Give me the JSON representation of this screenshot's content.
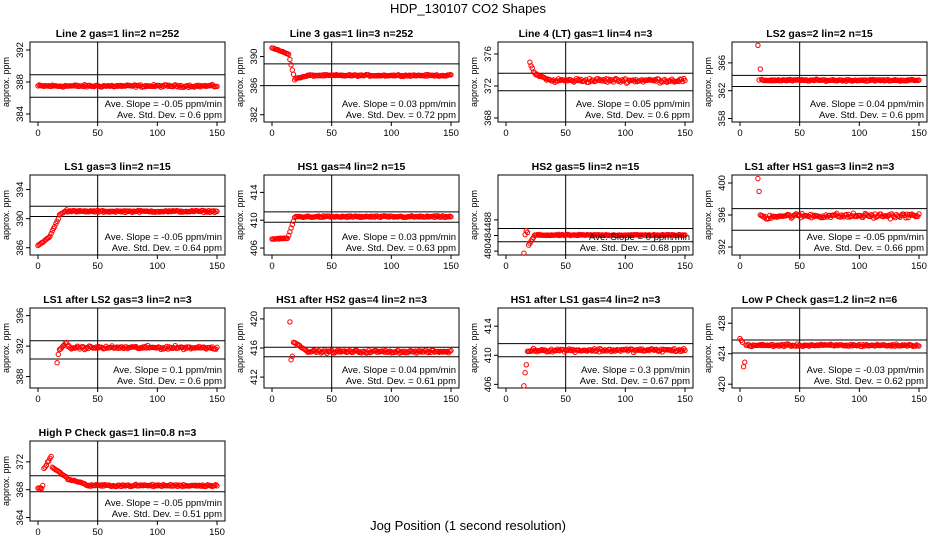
{
  "figure": {
    "title": "HDP_130107  CO2 Shapes",
    "xlabel": "Jog Position (1 second resolution)"
  },
  "chart_data": [
    {
      "type": "scatter",
      "title": "Line 2 gas=1 lin=2 n=252",
      "ylabel": "approx. ppm",
      "xlim": [
        0,
        150
      ],
      "xticks": [
        0,
        50,
        100,
        150
      ],
      "ylim": [
        383,
        393
      ],
      "yticks": [
        384,
        388,
        392
      ],
      "hlines": [
        388.9,
        386.1
      ],
      "vline": 50,
      "annotations": [
        "Ave. Slope = -0.05  ppm/min",
        "Ave. Std. Dev. = 0.6  ppm"
      ],
      "shape": {
        "base": 387.5,
        "noise": 0.22,
        "start": 0,
        "segments": []
      }
    },
    {
      "type": "scatter",
      "title": "Line 3 gas=1 lin=3 n=252",
      "ylabel": "approx. ppm",
      "xlim": [
        0,
        150
      ],
      "xticks": [
        0,
        50,
        100,
        150
      ],
      "ylim": [
        381,
        392
      ],
      "yticks": [
        382,
        386,
        390
      ],
      "hlines": [
        389.0,
        386.0
      ],
      "vline": 50,
      "annotations": [
        "Ave. Slope = 0.03  ppm/min",
        "Ave. Std. Dev. = 0.72  ppm"
      ],
      "shape": {
        "base": 387.4,
        "noise": 0.15,
        "start": 0,
        "segments": [
          [
            0,
            14,
            391.2,
            390.4
          ],
          [
            14,
            20,
            390.3,
            386.8
          ],
          [
            20,
            30,
            387.0,
            387.3
          ]
        ]
      }
    },
    {
      "type": "scatter",
      "title": "Line 4 (LT) gas=1 lin=4 n=3",
      "ylabel": "approx. ppm",
      "xlim": [
        0,
        150
      ],
      "xticks": [
        0,
        50,
        100,
        150
      ],
      "ylim": [
        367.5,
        377.5
      ],
      "yticks": [
        368,
        372,
        376
      ],
      "hlines": [
        373.6,
        371.4
      ],
      "vline": 50,
      "annotations": [
        "Ave. Slope = 0.05  ppm/min",
        "Ave. Std. Dev. = 0.6  ppm"
      ],
      "shape": {
        "base": 372.7,
        "noise": 0.4,
        "start": 20,
        "segments": [
          [
            20,
            24,
            375.0,
            373.8
          ],
          [
            24,
            40,
            373.5,
            372.6
          ]
        ]
      }
    },
    {
      "type": "scatter",
      "title": "LS2 gas=2 lin=2 n=15",
      "ylabel": "approx. ppm",
      "xlim": [
        0,
        150
      ],
      "xticks": [
        0,
        50,
        100,
        150
      ],
      "ylim": [
        357.5,
        369
      ],
      "yticks": [
        358,
        362,
        366
      ],
      "hlines": [
        364.2,
        362.6
      ],
      "vline": 50,
      "annotations": [
        "Ave. Slope = 0.04  ppm/min",
        "Ave. Std. Dev. = 0.6  ppm"
      ],
      "shape": {
        "base": 363.5,
        "noise": 0.18,
        "start": 15,
        "segments": [
          [
            15,
            16,
            368.5,
            368.5
          ],
          [
            17,
            18,
            365.1,
            365.1
          ]
        ]
      }
    },
    {
      "type": "scatter",
      "title": "LS1 gas=3 lin=2 n=15",
      "ylabel": "approx. ppm",
      "xlim": [
        0,
        150
      ],
      "xticks": [
        0,
        50,
        100,
        150
      ],
      "ylim": [
        385,
        396
      ],
      "yticks": [
        386,
        390,
        394
      ],
      "hlines": [
        391.7,
        390.3
      ],
      "vline": 50,
      "annotations": [
        "Ave. Slope = -0.05  ppm/min",
        "Ave. Std. Dev. = 0.64  ppm"
      ],
      "shape": {
        "base": 391.0,
        "noise": 0.18,
        "start": 0,
        "segments": [
          [
            0,
            10,
            386.3,
            387.4
          ],
          [
            10,
            18,
            387.6,
            390.0
          ],
          [
            18,
            25,
            390.5,
            391.2
          ]
        ]
      }
    },
    {
      "type": "scatter",
      "title": "HS1 gas=4 lin=2 n=15",
      "ylabel": "approx. ppm",
      "xlim": [
        0,
        150
      ],
      "xticks": [
        0,
        50,
        100,
        150
      ],
      "ylim": [
        405,
        416.5
      ],
      "yticks": [
        406,
        410,
        414
      ],
      "hlines": [
        411.2,
        409.7
      ],
      "vline": 50,
      "annotations": [
        "Ave. Slope = 0.03  ppm/min",
        "Ave. Std. Dev. = 0.63  ppm"
      ],
      "shape": {
        "base": 410.5,
        "noise": 0.18,
        "start": 0,
        "segments": [
          [
            0,
            14,
            407.3,
            407.4
          ],
          [
            14,
            20,
            407.8,
            410.4
          ]
        ]
      }
    },
    {
      "type": "scatter",
      "title": "HS2 gas=5 lin=2 n=15",
      "ylabel": "approx. ppm",
      "xlim": [
        0,
        150
      ],
      "xticks": [
        0,
        50,
        100,
        150
      ],
      "ylim": [
        479,
        499.5
      ],
      "yticks": [
        480,
        484,
        488
      ],
      "hlines": [
        485.8,
        482.4
      ],
      "vline": 50,
      "annotations": [
        "Ave. Slope = 0  ppm/min",
        "Ave. Std. Dev. = 0.68  ppm"
      ],
      "shape": {
        "base": 484.1,
        "noise": 0.22,
        "start": 15,
        "segments": [
          [
            15,
            16,
            479.5,
            479.5
          ],
          [
            17,
            19,
            485.2,
            484.8
          ],
          [
            19,
            24,
            481.5,
            483.5
          ]
        ]
      }
    },
    {
      "type": "scatter",
      "title": "LS1 after HS1 gas=3 lin=2 n=3",
      "ylabel": "approx. ppm",
      "xlim": [
        0,
        150
      ],
      "xticks": [
        0,
        50,
        100,
        150
      ],
      "ylim": [
        391,
        401
      ],
      "yticks": [
        392,
        396,
        400
      ],
      "hlines": [
        396.8,
        394.1
      ],
      "vline": 50,
      "annotations": [
        "Ave. Slope = -0.05  ppm/min",
        "Ave. Std. Dev. = 0.66  ppm"
      ],
      "shape": {
        "base": 395.9,
        "noise": 0.45,
        "start": 15,
        "segments": [
          [
            15,
            17,
            400.6,
            398.8
          ],
          [
            17,
            25,
            396.0,
            395.5
          ]
        ]
      }
    },
    {
      "type": "scatter",
      "title": "LS1 after LS2 gas=3 lin=2 n=3",
      "ylabel": "approx. ppm",
      "xlim": [
        0,
        150
      ],
      "xticks": [
        0,
        50,
        100,
        150
      ],
      "ylim": [
        386.5,
        397
      ],
      "yticks": [
        388,
        392,
        396
      ],
      "hlines": [
        392.7,
        390.3
      ],
      "vline": 50,
      "annotations": [
        "Ave. Slope = 0.1  ppm/min",
        "Ave. Std. Dev. = 0.6  ppm"
      ],
      "shape": {
        "base": 391.8,
        "noise": 0.32,
        "start": 16,
        "segments": [
          [
            16,
            18,
            389.8,
            391.0
          ],
          [
            18,
            25,
            391.6,
            392.4
          ]
        ]
      }
    },
    {
      "type": "scatter",
      "title": "HS1 after HS2 gas=4 lin=2 n=3",
      "ylabel": "approx. ppm",
      "xlim": [
        0,
        150
      ],
      "xticks": [
        0,
        50,
        100,
        150
      ],
      "ylim": [
        410.5,
        421.5
      ],
      "yticks": [
        412,
        416,
        420
      ],
      "hlines": [
        416.1,
        414.8
      ],
      "vline": 50,
      "annotations": [
        "Ave. Slope = 0.04  ppm/min",
        "Ave. Std. Dev. = 0.61  ppm"
      ],
      "shape": {
        "base": 415.5,
        "noise": 0.28,
        "start": 15,
        "segments": [
          [
            15,
            16,
            419.6,
            419.6
          ],
          [
            16,
            18,
            414.4,
            414.9
          ],
          [
            18,
            30,
            416.8,
            415.7
          ]
        ]
      }
    },
    {
      "type": "scatter",
      "title": "HS1 after LS1 gas=4 lin=2 n=3",
      "ylabel": "approx. ppm",
      "xlim": [
        0,
        150
      ],
      "xticks": [
        0,
        50,
        100,
        150
      ],
      "ylim": [
        405.5,
        416.5
      ],
      "yticks": [
        406,
        410,
        414
      ],
      "hlines": [
        411.6,
        409.8
      ],
      "vline": 50,
      "annotations": [
        "Ave. Slope = 0.3  ppm/min",
        "Ave. Std. Dev. = 0.67  ppm"
      ],
      "shape": {
        "base": 410.7,
        "noise": 0.35,
        "start": 15,
        "segments": [
          [
            15,
            16,
            405.9,
            405.9
          ],
          [
            16,
            17,
            407.6,
            407.6
          ],
          [
            17,
            18,
            408.6,
            408.6
          ],
          [
            18,
            20,
            410.5,
            410.6
          ]
        ]
      }
    },
    {
      "type": "scatter",
      "title": "Low P Check gas=1.2 lin=2 n=6",
      "ylabel": "approx. ppm",
      "xlim": [
        0,
        150
      ],
      "xticks": [
        0,
        50,
        100,
        150
      ],
      "ylim": [
        419.5,
        430
      ],
      "yticks": [
        420,
        424,
        428
      ],
      "hlines": [
        425.8,
        424.1
      ],
      "vline": 50,
      "annotations": [
        "Ave. Slope = -0.03  ppm/min",
        "Ave. Std. Dev. = 0.62  ppm"
      ],
      "shape": {
        "base": 425.1,
        "noise": 0.22,
        "start": 0,
        "segments": [
          [
            3,
            4,
            422.3,
            422.3
          ],
          [
            4,
            5,
            422.9,
            422.9
          ],
          [
            0,
            3,
            426.0,
            425.5
          ]
        ]
      }
    },
    {
      "type": "scatter",
      "title": "High P Check gas=1 lin=0.8 n=3",
      "ylabel": "approx. ppm",
      "xlim": [
        0,
        150
      ],
      "xticks": [
        0,
        50,
        100,
        150
      ],
      "ylim": [
        363.5,
        375
      ],
      "yticks": [
        364,
        368,
        372
      ],
      "hlines": [
        370.0,
        367.7
      ],
      "vline": 50,
      "annotations": [
        "Ave. Slope = -0.05  ppm/min",
        "Ave. Std. Dev. = 0.51  ppm"
      ],
      "shape": {
        "base": 368.6,
        "noise": 0.22,
        "start": 0,
        "segments": [
          [
            0,
            4,
            368.2,
            368.2
          ],
          [
            5,
            12,
            371.0,
            372.8
          ],
          [
            12,
            25,
            371.2,
            369.8
          ],
          [
            25,
            40,
            369.5,
            368.9
          ]
        ]
      }
    }
  ]
}
